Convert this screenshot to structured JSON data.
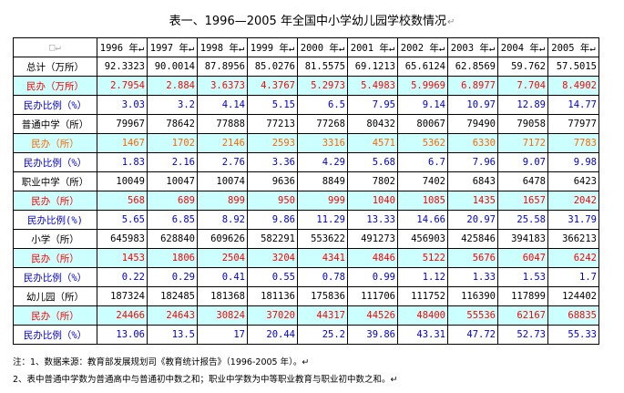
{
  "title": "表一、1996—2005 年全国中小学幼儿园学校数情况",
  "title_mark": "↵",
  "corner_cell": "□↵",
  "years": [
    "1996 年↵",
    "1997 年↵",
    "1998 年↵",
    "1999 年↵",
    "2000 年↵",
    "2001 年↵",
    "2002 年↵",
    "2003 年↵",
    "2004 年↵",
    "2005 年↵"
  ],
  "colors": {
    "cyan": "#ccffff",
    "red": "#ff0000",
    "blue": "#0000cc",
    "orange": "#ff6600",
    "black": "#000000"
  },
  "rows": [
    {
      "label": "总计（万所）",
      "bg": "white",
      "color": "black",
      "values": [
        "92.3323",
        "90.0014",
        "87.8956",
        "85.0276",
        "81.5575",
        "69.1213",
        "65.6124",
        "62.8569",
        "59.762",
        "57.5015"
      ]
    },
    {
      "label": "民办（万所）",
      "bg": "cyan",
      "color": "red",
      "values": [
        "2.7954",
        "2.884",
        "3.6373",
        "4.3767",
        "5.2973",
        "5.4983",
        "5.9969",
        "6.8977",
        "7.704",
        "8.4902"
      ]
    },
    {
      "label": "民办比例（%）",
      "bg": "white",
      "color": "blue",
      "values": [
        "3.03",
        "3.2",
        "4.14",
        "5.15",
        "6.5",
        "7.95",
        "9.14",
        "10.97",
        "12.89",
        "14.77"
      ]
    },
    {
      "label": "普通中学（所）",
      "bg": "white",
      "color": "black",
      "values": [
        "79967",
        "78642",
        "77888",
        "77213",
        "77268",
        "80432",
        "80067",
        "79490",
        "79058",
        "77977"
      ]
    },
    {
      "label": "民办（所）",
      "bg": "cyan",
      "color": "orange",
      "values": [
        "1467",
        "1702",
        "2146",
        "2593",
        "3316",
        "4571",
        "5362",
        "6330",
        "7172",
        "7783"
      ]
    },
    {
      "label": "民办比例（%）",
      "bg": "white",
      "color": "blue",
      "values": [
        "1.83",
        "2.16",
        "2.76",
        "3.36",
        "4.29",
        "5.68",
        "6.7",
        "7.96",
        "9.07",
        "9.98"
      ]
    },
    {
      "label": "职业中学（所）",
      "bg": "white",
      "color": "black",
      "values": [
        "10049",
        "10047",
        "10074",
        "9636",
        "8849",
        "7802",
        "7402",
        "6843",
        "6478",
        "6423"
      ]
    },
    {
      "label": "民办（所）",
      "bg": "cyan",
      "color": "red",
      "values": [
        "568",
        "689",
        "899",
        "950",
        "999",
        "1040",
        "1085",
        "1435",
        "1657",
        "2042"
      ]
    },
    {
      "label": "民办比例(%)",
      "bg": "white",
      "color": "blue",
      "values": [
        "5.65",
        "6.85",
        "8.92",
        "9.86",
        "11.29",
        "13.33",
        "14.66",
        "20.97",
        "25.58",
        "31.79"
      ]
    },
    {
      "label": "小学（所）",
      "bg": "white",
      "color": "black",
      "values": [
        "645983",
        "628840",
        "609626",
        "582291",
        "553622",
        "491273",
        "456903",
        "425846",
        "394183",
        "366213"
      ]
    },
    {
      "label": "民办（所）",
      "bg": "cyan",
      "color": "red",
      "values": [
        "1453",
        "1806",
        "2504",
        "3204",
        "4341",
        "4846",
        "5122",
        "5676",
        "6047",
        "6242"
      ]
    },
    {
      "label": "民办比例（%）",
      "bg": "white",
      "color": "blue",
      "values": [
        "0.22",
        "0.29",
        "0.41",
        "0.55",
        "0.78",
        "0.99",
        "1.12",
        "1.33",
        "1.53",
        "1.7"
      ]
    },
    {
      "label": "幼儿园（所）",
      "bg": "white",
      "color": "black",
      "values": [
        "187324",
        "182485",
        "181368",
        "181136",
        "175836",
        "111706",
        "111752",
        "116390",
        "117899",
        "124402"
      ]
    },
    {
      "label": "民办（所）",
      "bg": "cyan",
      "color": "red",
      "values": [
        "24466",
        "24643",
        "30824",
        "37020",
        "44317",
        "44526",
        "48400",
        "55536",
        "62167",
        "68835"
      ]
    },
    {
      "label": "民办比例（%）",
      "bg": "white",
      "color": "blue",
      "values": [
        "13.06",
        "13.5",
        "17",
        "20.44",
        "25.2",
        "39.86",
        "43.31",
        "47.72",
        "52.73",
        "55.33"
      ]
    }
  ],
  "notes": [
    "注：1、数据来源：教育部发展规划司《教育统计报告》（1996-2005 年）。↵",
    "    2、表中普通中学数为普通高中与普通初中数之和；职业中学数为中等职业教育与职业初中数之和。↵"
  ]
}
